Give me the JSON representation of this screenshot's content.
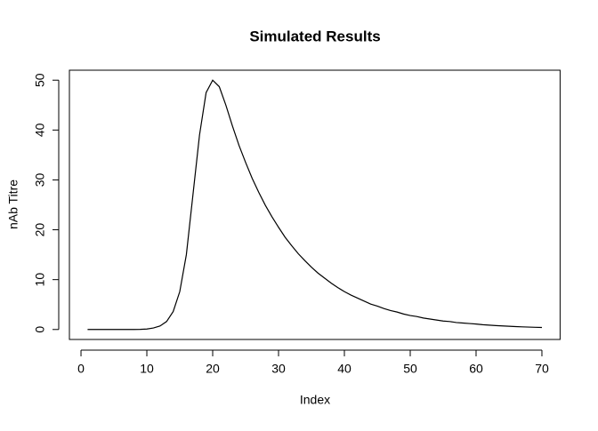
{
  "chart_data": {
    "type": "line",
    "title": "Simulated Results",
    "xlabel": "Index",
    "ylabel": "nAb Titre",
    "x": [
      1,
      2,
      3,
      4,
      5,
      6,
      7,
      8,
      9,
      10,
      11,
      12,
      13,
      14,
      15,
      16,
      17,
      18,
      19,
      20,
      21,
      22,
      23,
      24,
      25,
      26,
      27,
      28,
      29,
      30,
      31,
      32,
      33,
      34,
      35,
      36,
      37,
      38,
      39,
      40,
      41,
      42,
      43,
      44,
      45,
      46,
      47,
      48,
      49,
      50,
      51,
      52,
      53,
      54,
      55,
      56,
      57,
      58,
      59,
      60,
      61,
      62,
      63,
      64,
      65,
      66,
      67,
      68,
      69,
      70
    ],
    "series": [
      {
        "color": "#000000",
        "values": [
          0,
          0,
          0,
          0,
          0,
          0,
          0,
          0.01,
          0.03,
          0.1,
          0.3,
          0.7,
          1.6,
          3.6,
          7.6,
          15,
          27,
          39,
          47.5,
          50,
          48.7,
          45,
          40.8,
          36.9,
          33.5,
          30.3,
          27.5,
          24.9,
          22.6,
          20.5,
          18.5,
          16.8,
          15.2,
          13.8,
          12.5,
          11.3,
          10.3,
          9.3,
          8.4,
          7.6,
          6.9,
          6.3,
          5.7,
          5.1,
          4.7,
          4.2,
          3.8,
          3.5,
          3.1,
          2.8,
          2.6,
          2.3,
          2.1,
          1.9,
          1.7,
          1.6,
          1.4,
          1.3,
          1.2,
          1.1,
          0.96,
          0.87,
          0.79,
          0.72,
          0.65,
          0.59,
          0.53,
          0.48,
          0.44,
          0.4
        ]
      }
    ],
    "xlim": [
      -1.76,
      72.76
    ],
    "ylim": [
      -2,
      52
    ],
    "xticks": [
      0,
      10,
      20,
      30,
      40,
      50,
      60,
      70
    ],
    "yticks": [
      0,
      10,
      20,
      30,
      40,
      50
    ]
  }
}
